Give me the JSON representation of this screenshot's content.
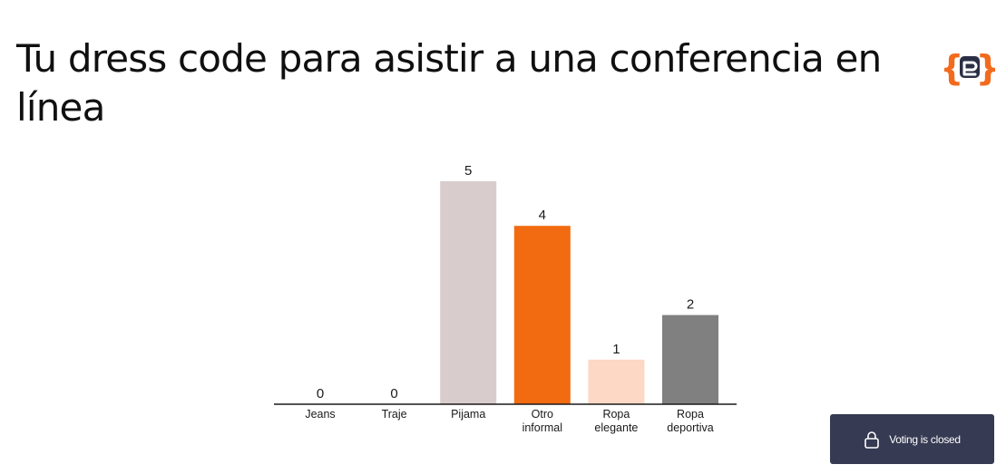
{
  "slide": {
    "title": "Tu dress code para asistir a una conferencia en línea"
  },
  "logo": {
    "icon": "brand-braces-logo-icon",
    "color": "#f26b1d"
  },
  "status": {
    "label": "Voting is closed",
    "icon": "lock-icon"
  },
  "chart_data": {
    "type": "bar",
    "categories": [
      [
        "Jeans"
      ],
      [
        "Traje"
      ],
      [
        "Pijama"
      ],
      [
        "Otro",
        "informal"
      ],
      [
        "Ropa",
        "elegante"
      ],
      [
        "Ropa",
        "deportiva"
      ]
    ],
    "values": [
      0,
      0,
      5,
      4,
      1,
      2
    ],
    "colors": [
      "#5a6fd6",
      "#b0b0b0",
      "#d9cccc",
      "#f26b10",
      "#fdd8c4",
      "#808080"
    ],
    "show_values": true,
    "grid": false,
    "ylim": [
      0,
      5
    ]
  }
}
